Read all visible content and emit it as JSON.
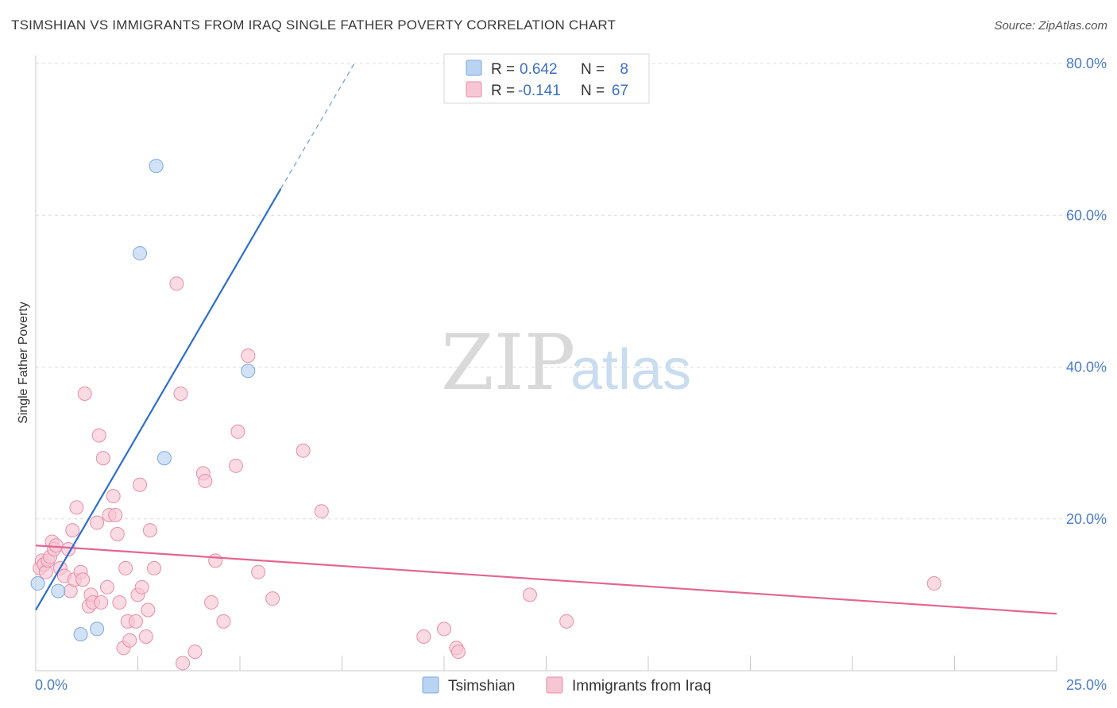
{
  "header": {
    "title": "TSIMSHIAN VS IMMIGRANTS FROM IRAQ SINGLE FATHER POVERTY CORRELATION CHART",
    "source": "Source: ZipAtlas.com"
  },
  "watermark": {
    "zip": "ZIP",
    "atlas": "atlas"
  },
  "legend": {
    "row1": {
      "r_label": "R =",
      "r_value": "0.642",
      "n_label": "N =",
      "n_value": "8"
    },
    "row2": {
      "r_label": "R =",
      "r_value": "-0.141",
      "n_label": "N =",
      "n_value": "67"
    }
  },
  "bottom_legend": {
    "series1": "Tsimshian",
    "series2": "Immigrants from Iraq"
  },
  "colors": {
    "tsimshian_fill": "#b9d3f3",
    "tsimshian_stroke": "#7ea8dc",
    "tsimshian_line": "#2e6fcb",
    "iraq_fill": "#f7c6d4",
    "iraq_stroke": "#e88ea9",
    "iraq_line": "#e2678f",
    "grid": "#dcdcdc",
    "tick_text": "#4a7cc9"
  },
  "chart_data": {
    "type": "scatter",
    "title": "TSIMSHIAN VS IMMIGRANTS FROM IRAQ SINGLE FATHER POVERTY CORRELATION CHART",
    "xlabel": "",
    "ylabel": "Single Father Poverty",
    "xlim": [
      0,
      25
    ],
    "ylim": [
      0,
      80
    ],
    "x_tick_labels": [
      "0.0%",
      "25.0%"
    ],
    "y_tick_labels": [
      "20.0%",
      "40.0%",
      "60.0%",
      "80.0%"
    ],
    "y_ticks": [
      20,
      40,
      60,
      80
    ],
    "x_minor_ticks": [
      0,
      2.5,
      5,
      7.5,
      10,
      12.5,
      15,
      17.5,
      20,
      22.5,
      25
    ],
    "series": [
      {
        "name": "Tsimshian",
        "points": [
          [
            0.05,
            11.5
          ],
          [
            0.55,
            10.5
          ],
          [
            1.1,
            4.8
          ],
          [
            1.5,
            5.5
          ],
          [
            2.55,
            55.0
          ],
          [
            2.95,
            66.5
          ],
          [
            3.15,
            28.0
          ],
          [
            5.2,
            39.5
          ]
        ],
        "trend": {
          "x0": 0,
          "y0": 8.0,
          "x1": 6.0,
          "y1": 63.5,
          "dash_to_x": 7.8,
          "dash_to_y": 80.0
        }
      },
      {
        "name": "Immigrants from Iraq",
        "points": [
          [
            0.1,
            13.5
          ],
          [
            0.15,
            14.5
          ],
          [
            0.2,
            14.0
          ],
          [
            0.25,
            13.0
          ],
          [
            0.3,
            14.5
          ],
          [
            0.35,
            15.0
          ],
          [
            0.4,
            17.0
          ],
          [
            0.45,
            16.0
          ],
          [
            0.5,
            16.5
          ],
          [
            0.6,
            13.5
          ],
          [
            0.7,
            12.5
          ],
          [
            0.8,
            16.0
          ],
          [
            0.85,
            10.5
          ],
          [
            0.9,
            18.5
          ],
          [
            0.95,
            12.0
          ],
          [
            1.0,
            21.5
          ],
          [
            1.1,
            13.0
          ],
          [
            1.15,
            12.0
          ],
          [
            1.2,
            36.5
          ],
          [
            1.3,
            8.5
          ],
          [
            1.35,
            10.0
          ],
          [
            1.4,
            9.0
          ],
          [
            1.5,
            19.5
          ],
          [
            1.55,
            31.0
          ],
          [
            1.6,
            9.0
          ],
          [
            1.65,
            28.0
          ],
          [
            1.75,
            11.0
          ],
          [
            1.8,
            20.5
          ],
          [
            1.9,
            23.0
          ],
          [
            1.95,
            20.5
          ],
          [
            2.0,
            18.0
          ],
          [
            2.05,
            9.0
          ],
          [
            2.15,
            3.0
          ],
          [
            2.2,
            13.5
          ],
          [
            2.25,
            6.5
          ],
          [
            2.3,
            4.0
          ],
          [
            2.45,
            6.5
          ],
          [
            2.5,
            10.0
          ],
          [
            2.55,
            24.5
          ],
          [
            2.6,
            11.0
          ],
          [
            2.7,
            4.5
          ],
          [
            2.75,
            8.0
          ],
          [
            2.8,
            18.5
          ],
          [
            2.9,
            13.5
          ],
          [
            3.45,
            51.0
          ],
          [
            3.55,
            36.5
          ],
          [
            3.6,
            1.0
          ],
          [
            3.9,
            2.5
          ],
          [
            4.1,
            26.0
          ],
          [
            4.15,
            25.0
          ],
          [
            4.3,
            9.0
          ],
          [
            4.4,
            14.5
          ],
          [
            4.6,
            6.5
          ],
          [
            4.9,
            27.0
          ],
          [
            4.95,
            31.5
          ],
          [
            5.2,
            41.5
          ],
          [
            5.45,
            13.0
          ],
          [
            5.8,
            9.5
          ],
          [
            6.55,
            29.0
          ],
          [
            7.0,
            21.0
          ],
          [
            9.5,
            4.5
          ],
          [
            10.0,
            5.5
          ],
          [
            10.3,
            3.0
          ],
          [
            10.35,
            2.5
          ],
          [
            12.1,
            10.0
          ],
          [
            13.0,
            6.5
          ],
          [
            22.0,
            11.5
          ]
        ],
        "trend": {
          "x0": 0,
          "y0": 16.5,
          "x1": 25,
          "y1": 7.5
        }
      }
    ]
  }
}
